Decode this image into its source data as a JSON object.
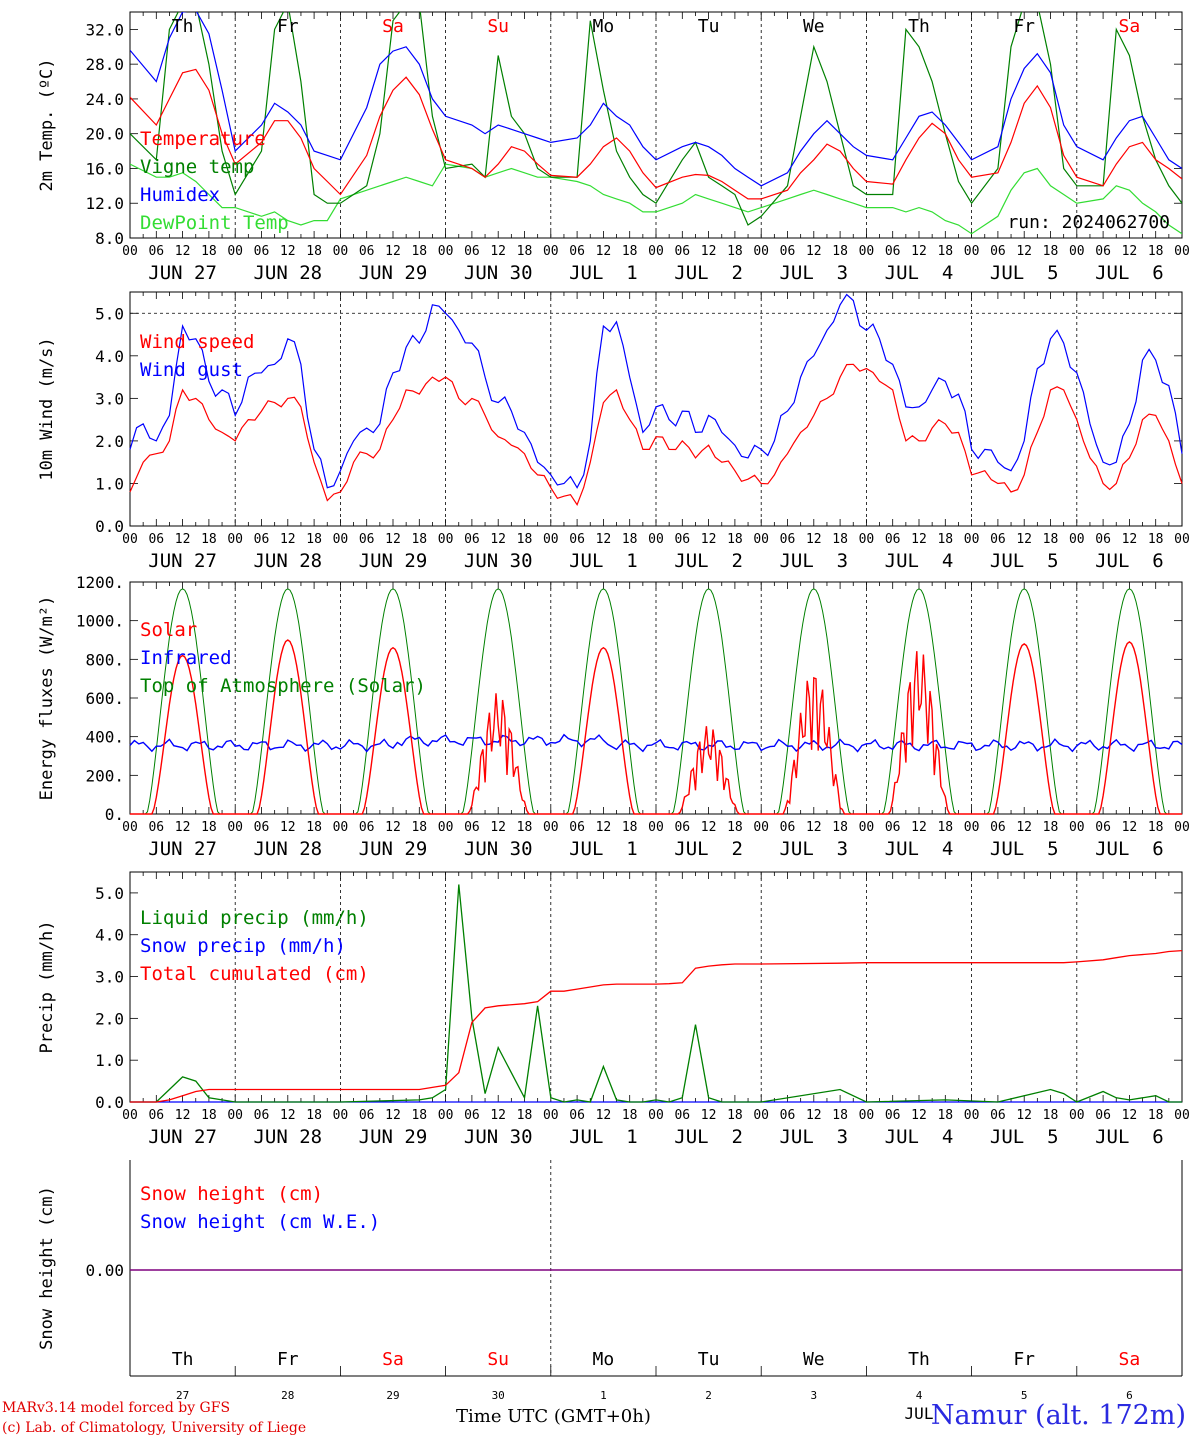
{
  "days": {
    "weekday_labels": [
      "Th",
      "Fr",
      "Sa",
      "Su",
      "Mo",
      "Tu",
      "We",
      "Th",
      "Fr",
      "Sa"
    ],
    "weekend_flags": [
      false,
      false,
      true,
      true,
      false,
      false,
      false,
      false,
      false,
      true
    ],
    "date_labels": [
      "JUN 27",
      "JUN 28",
      "JUN 29",
      "JUN 30",
      "JUL  1",
      "JUL  2",
      "JUL  3",
      "JUL  4",
      "JUL  5",
      "JUL  6"
    ],
    "hour_labels": [
      "00",
      "06",
      "12",
      "18"
    ],
    "final_hour_label": "00",
    "small_day_numbers": [
      "27",
      "28",
      "29",
      "30",
      "1",
      "2",
      "3",
      "4",
      "5",
      "6"
    ],
    "small_month_label": "JUL"
  },
  "colors": {
    "red": "#ff0000",
    "green": "#008000",
    "blue": "#0000ff",
    "lightgreen": "#33dd33",
    "purple": "#7f007f",
    "weekend": "#ff0000"
  },
  "footer": {
    "credit_line1": "MARv3.14 model forced by GFS",
    "credit_line2": "(c) Lab. of Climatology, University of Liege",
    "xlabel": "Time UTC (GMT+0h)",
    "station": "Namur (alt. 172m)"
  },
  "chart_data": [
    {
      "type": "line",
      "ylabel": "2m Temp. (ºC)",
      "ylim": [
        8,
        34
      ],
      "yticks": [
        "8.0",
        "12.0",
        "16.0",
        "20.0",
        "24.0",
        "28.0",
        "32.0"
      ],
      "annotation": "run: 2024062700",
      "x_hours": [
        0,
        6,
        9,
        12,
        15,
        18,
        21,
        24,
        30,
        33,
        36,
        39,
        42,
        45,
        48,
        54,
        57,
        60,
        63,
        66,
        69,
        72,
        78,
        81,
        84,
        87,
        90,
        93,
        96,
        102,
        105,
        108,
        111,
        114,
        117,
        120,
        126,
        129,
        132,
        135,
        138,
        141,
        144,
        150,
        153,
        156,
        159,
        162,
        165,
        168,
        174,
        177,
        180,
        183,
        186,
        189,
        192,
        198,
        201,
        204,
        207,
        210,
        213,
        216,
        222,
        225,
        228,
        231,
        234,
        237,
        240
      ],
      "series": [
        {
          "name": "Temperature",
          "color": "red",
          "values": [
            24.2,
            21.0,
            24.0,
            27.0,
            27.4,
            25.0,
            20.0,
            16.5,
            19.0,
            21.5,
            21.5,
            19.5,
            16.0,
            14.5,
            13.0,
            17.5,
            22.0,
            25.0,
            26.5,
            24.5,
            20.5,
            17.0,
            16.0,
            15.0,
            16.5,
            18.5,
            18.0,
            16.5,
            15.2,
            15.0,
            16.5,
            18.5,
            19.5,
            18.0,
            15.5,
            13.8,
            15.0,
            15.3,
            15.2,
            14.5,
            13.5,
            12.5,
            12.5,
            13.5,
            15.5,
            17.0,
            18.8,
            18.0,
            16.0,
            14.5,
            14.2,
            17.0,
            19.5,
            21.2,
            20.0,
            17.0,
            15.0,
            15.5,
            19.0,
            23.5,
            25.5,
            23.0,
            17.5,
            15.0,
            14.0,
            16.5,
            18.5,
            19.0,
            17.0,
            16.0,
            14.8
          ]
        },
        {
          "name": "Vigne temp",
          "color": "green",
          "values": [
            20.0,
            17.0,
            32.0,
            35.0,
            35.0,
            28.0,
            18.0,
            13.0,
            18.0,
            32.0,
            35.0,
            26.0,
            13.0,
            12.0,
            12.0,
            14.0,
            20.0,
            33.0,
            35.0,
            35.0,
            22.0,
            16.0,
            16.5,
            15.0,
            29.0,
            22.0,
            20.0,
            16.0,
            15.0,
            15.0,
            33.0,
            25.0,
            18.0,
            15.0,
            13.0,
            12.0,
            17.0,
            19.0,
            15.0,
            14.0,
            13.0,
            9.5,
            10.5,
            14.0,
            22.0,
            30.0,
            26.0,
            20.0,
            14.0,
            13.0,
            13.0,
            32.0,
            30.0,
            26.0,
            20.0,
            14.5,
            12.0,
            16.0,
            30.0,
            35.0,
            35.0,
            28.0,
            16.0,
            14.0,
            14.0,
            32.0,
            29.0,
            22.0,
            17.0,
            14.0,
            12.0
          ]
        },
        {
          "name": "Humidex",
          "color": "blue",
          "values": [
            29.6,
            26.0,
            31.0,
            34.0,
            34.2,
            31.5,
            25.0,
            18.0,
            21.0,
            23.5,
            22.5,
            21.0,
            18.0,
            17.5,
            17.0,
            23.0,
            28.0,
            29.5,
            30.0,
            28.0,
            24.0,
            22.0,
            21.0,
            20.0,
            21.0,
            20.5,
            20.0,
            19.5,
            19.0,
            19.5,
            21.0,
            23.5,
            22.0,
            21.0,
            18.5,
            17.0,
            18.5,
            19.0,
            18.5,
            17.5,
            16.0,
            15.0,
            14.0,
            15.5,
            18.0,
            20.0,
            21.5,
            20.0,
            18.5,
            17.5,
            17.0,
            19.5,
            22.0,
            22.5,
            21.0,
            19.0,
            17.0,
            18.5,
            24.0,
            27.5,
            29.2,
            27.0,
            21.0,
            18.5,
            17.0,
            19.5,
            21.5,
            22.0,
            19.5,
            17.0,
            16.0
          ]
        },
        {
          "name": "DewPoint Temp",
          "color": "lightgreen",
          "values": [
            16.5,
            15.0,
            15.0,
            15.5,
            14.5,
            13.0,
            11.5,
            11.5,
            10.5,
            11.0,
            10.0,
            9.5,
            10.0,
            10.0,
            12.5,
            13.5,
            14.0,
            14.5,
            15.0,
            14.5,
            14.0,
            16.5,
            16.0,
            15.0,
            15.5,
            16.0,
            15.5,
            15.0,
            15.0,
            14.5,
            14.0,
            13.0,
            12.5,
            12.0,
            11.0,
            11.0,
            12.0,
            13.0,
            12.5,
            12.0,
            11.5,
            11.0,
            11.5,
            12.5,
            13.0,
            13.5,
            13.0,
            12.5,
            12.0,
            11.5,
            11.5,
            11.0,
            11.5,
            11.0,
            10.0,
            9.5,
            8.5,
            10.5,
            13.5,
            15.5,
            16.0,
            14.0,
            13.0,
            12.0,
            12.5,
            14.0,
            13.5,
            12.0,
            11.0,
            9.5,
            8.5
          ]
        }
      ]
    },
    {
      "type": "line",
      "ylabel": "10m Wind (m/s)",
      "ylim": [
        0,
        5.5
      ],
      "yticks": [
        "0.0",
        "1.0",
        "2.0",
        "3.0",
        "4.0",
        "5.0"
      ],
      "reference_line": 5.0,
      "x_hours": [
        0,
        3,
        6,
        9,
        12,
        15,
        18,
        21,
        24,
        27,
        30,
        33,
        36,
        39,
        42,
        45,
        48,
        51,
        54,
        57,
        60,
        63,
        66,
        69,
        72,
        75,
        78,
        81,
        84,
        87,
        90,
        93,
        96,
        99,
        102,
        105,
        108,
        111,
        114,
        117,
        120,
        123,
        126,
        129,
        132,
        135,
        138,
        141,
        144,
        147,
        150,
        153,
        156,
        159,
        162,
        165,
        168,
        171,
        174,
        177,
        180,
        183,
        186,
        189,
        192,
        195,
        198,
        201,
        204,
        207,
        210,
        213,
        216,
        219,
        222,
        225,
        228,
        231,
        234,
        237,
        240
      ],
      "series": [
        {
          "name": "Wind speed",
          "color": "red",
          "values": [
            0.8,
            1.5,
            1.7,
            2.0,
            3.2,
            3.0,
            2.5,
            2.2,
            2.0,
            2.5,
            2.7,
            2.9,
            3.0,
            2.8,
            1.5,
            0.6,
            0.8,
            1.5,
            1.7,
            1.8,
            2.5,
            3.2,
            3.1,
            3.5,
            3.5,
            3.0,
            3.0,
            2.6,
            2.1,
            1.9,
            1.7,
            1.2,
            0.9,
            0.7,
            0.5,
            1.5,
            2.9,
            3.2,
            2.5,
            1.8,
            2.1,
            1.8,
            2.0,
            1.6,
            1.9,
            1.5,
            1.3,
            1.1,
            1.0,
            1.2,
            1.7,
            2.2,
            2.6,
            3.0,
            3.5,
            3.8,
            3.7,
            3.4,
            3.2,
            2.0,
            2.0,
            2.3,
            2.4,
            2.2,
            1.2,
            1.3,
            1.0,
            0.8,
            1.2,
            2.2,
            3.2,
            3.2,
            2.5,
            1.6,
            1.0,
            1.0,
            1.6,
            2.5,
            2.6,
            2.0,
            1.0
          ]
        },
        {
          "name": "Wind gust",
          "color": "blue",
          "values": [
            1.8,
            2.4,
            2.0,
            2.6,
            4.7,
            4.4,
            3.4,
            3.2,
            2.6,
            3.5,
            3.6,
            3.8,
            4.4,
            3.8,
            1.8,
            0.9,
            1.3,
            2.0,
            2.3,
            2.4,
            3.6,
            4.2,
            4.3,
            5.2,
            5.0,
            4.6,
            4.3,
            3.5,
            2.9,
            2.7,
            2.2,
            1.5,
            1.2,
            1.0,
            0.9,
            2.0,
            4.7,
            4.8,
            3.5,
            2.2,
            2.8,
            2.5,
            2.7,
            2.2,
            2.6,
            2.2,
            1.9,
            1.6,
            1.8,
            2.0,
            2.7,
            3.5,
            4.0,
            4.6,
            5.2,
            5.3,
            4.6,
            4.4,
            3.8,
            2.8,
            2.8,
            3.2,
            3.4,
            3.1,
            1.8,
            1.8,
            1.5,
            1.3,
            2.0,
            3.7,
            4.4,
            4.3,
            3.6,
            2.4,
            1.5,
            1.5,
            2.4,
            3.9,
            3.9,
            3.3,
            1.7
          ]
        }
      ]
    },
    {
      "type": "line",
      "ylabel": "Energy fluxes (W/m²)",
      "ylim": [
        0,
        1200
      ],
      "yticks": [
        "0.",
        "200.",
        "400.",
        "600.",
        "800.",
        "1000.",
        "1200."
      ],
      "toa_peak": 1165,
      "infrared_base": 355,
      "daily_solar_peak": [
        820,
        900,
        860,
        630,
        860,
        460,
        760,
        860,
        880,
        890
      ],
      "series": [
        {
          "name": "Solar",
          "color": "red"
        },
        {
          "name": "Infrared",
          "color": "blue"
        },
        {
          "name": "Top of Atmosphere (Solar)",
          "color": "green"
        }
      ]
    },
    {
      "type": "line",
      "ylabel": "Precip (mm/h)",
      "ylim": [
        0,
        5.5
      ],
      "yticks": [
        "0.0",
        "1.0",
        "2.0",
        "3.0",
        "4.0",
        "5.0"
      ],
      "x_hours": [
        0,
        6,
        9,
        12,
        15,
        18,
        24,
        48,
        66,
        69,
        72,
        75,
        78,
        81,
        84,
        90,
        93,
        96,
        99,
        102,
        105,
        108,
        111,
        114,
        117,
        120,
        123,
        126,
        129,
        132,
        135,
        138,
        144,
        162,
        168,
        186,
        198,
        210,
        213,
        216,
        222,
        225,
        228,
        234,
        237,
        240
      ],
      "series": [
        {
          "name": "Liquid precip (mm/h)",
          "color": "green",
          "values": [
            0,
            0,
            0.3,
            0.6,
            0.5,
            0.1,
            0,
            0,
            0.05,
            0.1,
            0.3,
            5.2,
            2.0,
            0.2,
            1.3,
            0.1,
            2.3,
            0.1,
            0,
            0.05,
            0,
            0.85,
            0.05,
            0,
            0,
            0.05,
            0,
            0.1,
            1.85,
            0.1,
            0,
            0,
            0,
            0.3,
            0,
            0.05,
            0,
            0.3,
            0.2,
            0,
            0.25,
            0.1,
            0.05,
            0.15,
            0,
            0
          ]
        },
        {
          "name": "Snow precip (mm/h)",
          "color": "blue",
          "values": [
            0,
            0,
            0,
            0,
            0,
            0,
            0,
            0,
            0,
            0,
            0,
            0,
            0,
            0,
            0,
            0,
            0,
            0,
            0,
            0,
            0,
            0,
            0,
            0,
            0,
            0,
            0,
            0,
            0,
            0,
            0,
            0,
            0,
            0,
            0,
            0,
            0,
            0,
            0,
            0,
            0,
            0,
            0,
            0,
            0,
            0
          ]
        },
        {
          "name": "Total cumulated (cm)",
          "color": "red",
          "values": [
            0,
            0,
            0.05,
            0.15,
            0.25,
            0.3,
            0.3,
            0.3,
            0.3,
            0.35,
            0.4,
            0.7,
            1.9,
            2.25,
            2.3,
            2.35,
            2.4,
            2.65,
            2.65,
            2.7,
            2.75,
            2.8,
            2.82,
            2.82,
            2.82,
            2.82,
            2.83,
            2.85,
            3.2,
            3.25,
            3.28,
            3.3,
            3.3,
            3.32,
            3.33,
            3.33,
            3.33,
            3.33,
            3.33,
            3.35,
            3.4,
            3.45,
            3.5,
            3.55,
            3.6,
            3.62
          ]
        }
      ]
    },
    {
      "type": "line",
      "ylabel": "Snow height (cm)",
      "yticks": [
        "0.00"
      ],
      "series": [
        {
          "name": "Snow height (cm)",
          "color": "red",
          "values": [
            0,
            0
          ]
        },
        {
          "name": "Snow height (cm W.E.)",
          "color": "blue",
          "values": [
            0,
            0
          ]
        }
      ]
    }
  ]
}
